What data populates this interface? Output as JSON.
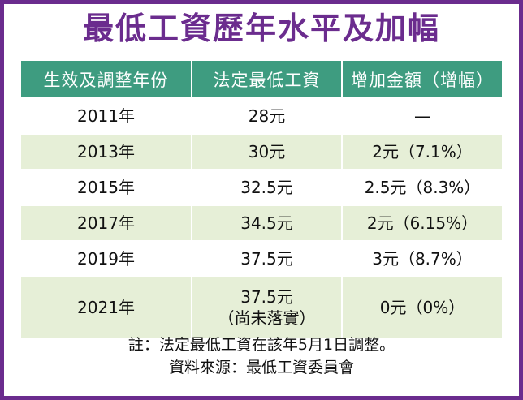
{
  "title": "最低工資歷年水平及加幅",
  "table": {
    "headers": [
      "生效及調整年份",
      "法定最低工資",
      "增加金額（增幅）"
    ],
    "rows": [
      {
        "year": "2011年",
        "wage": "28元",
        "wage_note": "",
        "increase": "—"
      },
      {
        "year": "2013年",
        "wage": "30元",
        "wage_note": "",
        "increase": "2元（7.1%）"
      },
      {
        "year": "2015年",
        "wage": "32.5元",
        "wage_note": "",
        "increase": "2.5元（8.3%）"
      },
      {
        "year": "2017年",
        "wage": "34.5元",
        "wage_note": "",
        "increase": "2元（6.15%）"
      },
      {
        "year": "2019年",
        "wage": "37.5元",
        "wage_note": "",
        "increase": "3元（8.7%）"
      },
      {
        "year": "2021年",
        "wage": "37.5元",
        "wage_note": "（尚未落實）",
        "increase": "0元（0%）"
      }
    ]
  },
  "notes": {
    "remark": "註：法定最低工資在該年5月1日調整。",
    "source": "資料來源：最低工資委員會"
  },
  "colors": {
    "title": "#6b2c8e",
    "border": "#6b2c8e",
    "header_bg": "#3e9c80",
    "alt_row_bg": "#e6efd7"
  }
}
